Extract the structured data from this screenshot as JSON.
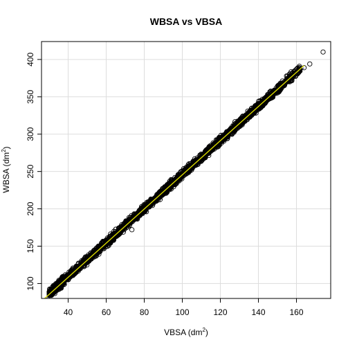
{
  "chart_data": {
    "type": "scatter",
    "title": "WBSA vs VBSA",
    "xlabel": "VBSA (dm",
    "xlabel_sup": "2",
    "xlabel_tail": ")",
    "ylabel": "WBSA (dm",
    "ylabel_sup": "2",
    "ylabel_tail": ")",
    "xlim": [
      26,
      178
    ],
    "ylim": [
      80,
      424
    ],
    "xticks": [
      40,
      60,
      80,
      100,
      120,
      140,
      160
    ],
    "yticks": [
      100,
      150,
      200,
      250,
      300,
      350,
      400
    ],
    "grid": true,
    "trend_fit": {
      "slope": 2.28,
      "intercept": 18,
      "x_from": 30,
      "x_to": 164
    },
    "colors": {
      "points": "#000000",
      "fit_line": "#d9d900",
      "fit_band": "#2a2a7a",
      "grid": "#dddddd",
      "axes": "#000000"
    },
    "outliers": [
      {
        "x": 174,
        "y": 410
      },
      {
        "x": 167,
        "y": 394
      },
      {
        "x": 164,
        "y": 389
      },
      {
        "x": 161,
        "y": 383
      },
      {
        "x": 158,
        "y": 376
      },
      {
        "x": 73.5,
        "y": 172
      },
      {
        "x": 32,
        "y": 94
      },
      {
        "x": 33,
        "y": 97
      }
    ]
  }
}
